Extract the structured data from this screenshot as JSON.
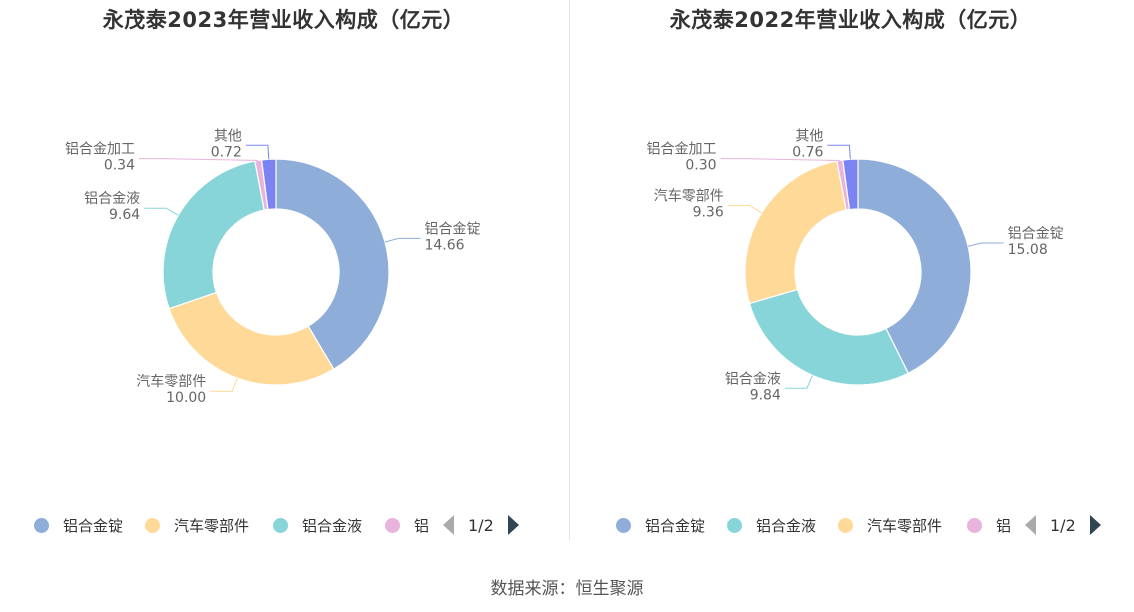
{
  "source_text": "数据来源：恒生聚源",
  "chart_data": [
    {
      "type": "pie",
      "title": "永茂泰2023年营业收入构成（亿元）",
      "slices": [
        {
          "name": "铝合金锭",
          "value": 14.66,
          "value_label": "14.66",
          "color": "#8eadd9"
        },
        {
          "name": "汽车零部件",
          "value": 10.0,
          "value_label": "10.00",
          "color": "#ffd998"
        },
        {
          "name": "铝合金液",
          "value": 9.64,
          "value_label": "9.64",
          "color": "#88d5d9"
        },
        {
          "name": "铝合金加工",
          "value": 0.34,
          "value_label": "0.34",
          "color": "#e8b3dc"
        },
        {
          "name": "其他",
          "value": 0.72,
          "value_label": "0.72",
          "color": "#7b84f0"
        }
      ],
      "legend": {
        "items": [
          {
            "label": "铝合金锭",
            "color": "#8eadd9"
          },
          {
            "label": "汽车零部件",
            "color": "#ffd998"
          },
          {
            "label": "铝合金液",
            "color": "#88d5d9"
          },
          {
            "label": "铝",
            "color": "#e8b3dc"
          }
        ],
        "page": "1/2"
      }
    },
    {
      "type": "pie",
      "title": "永茂泰2022年营业收入构成（亿元）",
      "slices": [
        {
          "name": "铝合金锭",
          "value": 15.08,
          "value_label": "15.08",
          "color": "#8eadd9"
        },
        {
          "name": "铝合金液",
          "value": 9.84,
          "value_label": "9.84",
          "color": "#88d5d9"
        },
        {
          "name": "汽车零部件",
          "value": 9.36,
          "value_label": "9.36",
          "color": "#ffd998"
        },
        {
          "name": "铝合金加工",
          "value": 0.3,
          "value_label": "0.30",
          "color": "#e8b3dc"
        },
        {
          "name": "其他",
          "value": 0.76,
          "value_label": "0.76",
          "color": "#7b84f0"
        }
      ],
      "legend": {
        "items": [
          {
            "label": "铝合金锭",
            "color": "#8eadd9"
          },
          {
            "label": "铝合金液",
            "color": "#88d5d9"
          },
          {
            "label": "汽车零部件",
            "color": "#ffd998"
          },
          {
            "label": "铝",
            "color": "#e8b3dc"
          }
        ],
        "page": "1/2"
      }
    }
  ]
}
